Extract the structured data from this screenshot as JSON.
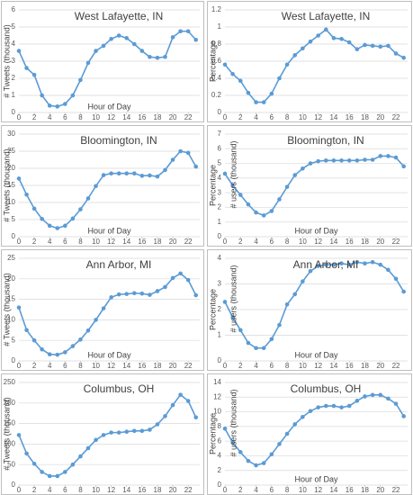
{
  "chart_data": [
    {
      "type": "line",
      "title": "West Lafayette, IN",
      "y_label": "# Tweets (thousand)",
      "x_label": "Hour of Day",
      "color": "#5b9bd5",
      "grid": true,
      "x": [
        0,
        1,
        2,
        3,
        4,
        5,
        6,
        7,
        8,
        9,
        10,
        11,
        12,
        13,
        14,
        15,
        16,
        17,
        18,
        19,
        20,
        21,
        22,
        23
      ],
      "values": [
        3.6,
        2.6,
        2.2,
        1.0,
        0.4,
        0.35,
        0.5,
        1.0,
        1.9,
        2.9,
        3.6,
        3.9,
        4.3,
        4.5,
        4.35,
        4.0,
        3.6,
        3.25,
        3.2,
        3.25,
        4.4,
        4.75,
        4.75,
        4.25
      ],
      "xlim": [
        0,
        23.5
      ],
      "xticks": [
        0,
        2,
        4,
        6,
        8,
        10,
        12,
        14,
        16,
        18,
        20,
        22
      ],
      "ylim": [
        0,
        6
      ],
      "yticks": [
        0,
        1,
        2,
        3,
        4,
        5,
        6
      ]
    },
    {
      "type": "line",
      "title": "West Lafayette, IN",
      "y_label": "Percentage",
      "color": "#5b9bd5",
      "grid": true,
      "x": [
        0,
        1,
        2,
        3,
        4,
        5,
        6,
        7,
        8,
        9,
        10,
        11,
        12,
        13,
        14,
        15,
        16,
        17,
        18,
        19,
        20,
        21,
        22,
        23
      ],
      "values": [
        0.56,
        0.45,
        0.37,
        0.23,
        0.12,
        0.12,
        0.22,
        0.4,
        0.56,
        0.67,
        0.75,
        0.83,
        0.9,
        0.97,
        0.87,
        0.86,
        0.82,
        0.74,
        0.79,
        0.78,
        0.77,
        0.78,
        0.69,
        0.64
      ],
      "xlim": [
        0,
        23.5
      ],
      "xticks": [
        0,
        2,
        4,
        6,
        8,
        10,
        12,
        14,
        16,
        18,
        20,
        22
      ],
      "ylim": [
        0,
        1.2
      ],
      "yticks": [
        0,
        0.2,
        0.4,
        0.6,
        0.8,
        1,
        1.2
      ]
    },
    {
      "type": "line",
      "title": "Bloomington, IN",
      "y_label": "# Tweets (thousand)",
      "x_label": "Hour of Day",
      "color": "#5b9bd5",
      "grid": true,
      "x": [
        0,
        1,
        2,
        3,
        4,
        5,
        6,
        7,
        8,
        9,
        10,
        11,
        12,
        13,
        14,
        15,
        16,
        17,
        18,
        19,
        20,
        21,
        22,
        23
      ],
      "values": [
        17,
        12.3,
        8.2,
        5.2,
        3.2,
        2.5,
        3.2,
        5.3,
        8,
        11.2,
        14.8,
        18,
        18.5,
        18.5,
        18.5,
        18.5,
        17.8,
        17.9,
        17.6,
        19.5,
        22.5,
        25,
        24.5,
        20.5
      ],
      "xlim": [
        0,
        23.5
      ],
      "xticks": [
        0,
        2,
        4,
        6,
        8,
        10,
        12,
        14,
        16,
        18,
        20,
        22
      ],
      "ylim": [
        0,
        30
      ],
      "yticks": [
        0,
        5,
        10,
        15,
        20,
        25,
        30
      ]
    },
    {
      "type": "line",
      "title": "Bloomington, IN",
      "y_label": "Percentage",
      "overlay_label": "# users (thousand)",
      "x_label": "Hour of Day",
      "color": "#5b9bd5",
      "grid": true,
      "x": [
        0,
        1,
        2,
        3,
        4,
        5,
        6,
        7,
        8,
        9,
        10,
        11,
        12,
        13,
        14,
        15,
        16,
        17,
        18,
        19,
        20,
        21,
        22,
        23
      ],
      "values": [
        4.3,
        3.5,
        2.85,
        2.2,
        1.65,
        1.45,
        1.75,
        2.55,
        3.4,
        4.2,
        4.65,
        5.0,
        5.15,
        5.2,
        5.2,
        5.2,
        5.2,
        5.2,
        5.25,
        5.25,
        5.5,
        5.5,
        5.4,
        4.8
      ],
      "xlim": [
        0,
        23.5
      ],
      "xticks": [
        0,
        2,
        4,
        6,
        8,
        10,
        12,
        14,
        16,
        18,
        20,
        22
      ],
      "ylim": [
        0,
        7
      ],
      "yticks": [
        0,
        1,
        2,
        3,
        4,
        5,
        6,
        7
      ]
    },
    {
      "type": "line",
      "title": "Ann Arbor, MI",
      "y_label": "# Tweets (thousand)",
      "x_label": "Hour of Day",
      "color": "#5b9bd5",
      "grid": true,
      "x": [
        0,
        1,
        2,
        3,
        4,
        5,
        6,
        7,
        8,
        9,
        10,
        11,
        12,
        13,
        14,
        15,
        16,
        17,
        18,
        19,
        20,
        21,
        22,
        23
      ],
      "values": [
        13,
        7.5,
        5,
        2.8,
        1.6,
        1.5,
        2.1,
        3.6,
        5.2,
        7.4,
        10,
        12.8,
        15.5,
        16.2,
        16.3,
        16.5,
        16.4,
        16.1,
        17,
        18,
        20.2,
        21.3,
        19.7,
        16
      ],
      "xlim": [
        0,
        23.5
      ],
      "xticks": [
        0,
        2,
        4,
        6,
        8,
        10,
        12,
        14,
        16,
        18,
        20,
        22
      ],
      "ylim": [
        0,
        25
      ],
      "yticks": [
        0,
        5,
        10,
        15,
        20,
        25
      ]
    },
    {
      "type": "line",
      "title": "Ann Arbor, MI",
      "y_label": "Percentage",
      "overlay_label": "# users (thousand)",
      "x_label": "Hour of Day",
      "color": "#5b9bd5",
      "grid": true,
      "x": [
        0,
        1,
        2,
        3,
        4,
        5,
        6,
        7,
        8,
        9,
        10,
        11,
        12,
        13,
        14,
        15,
        16,
        17,
        18,
        19,
        20,
        21,
        22,
        23
      ],
      "values": [
        2.3,
        1.7,
        1.2,
        0.7,
        0.5,
        0.5,
        0.85,
        1.4,
        2.2,
        2.6,
        3.1,
        3.5,
        3.7,
        3.75,
        3.75,
        3.8,
        3.75,
        3.85,
        3.8,
        3.85,
        3.75,
        3.55,
        3.2,
        2.7
      ],
      "xlim": [
        0,
        23.5
      ],
      "xticks": [
        0,
        2,
        4,
        6,
        8,
        10,
        12,
        14,
        16,
        18,
        20,
        22
      ],
      "ylim": [
        0,
        4
      ],
      "yticks": [
        0,
        1,
        2,
        3,
        4
      ]
    },
    {
      "type": "line",
      "title": "Columbus, OH",
      "y_label": "# Tweets (thousand)",
      "color": "#5b9bd5",
      "grid": true,
      "x": [
        0,
        1,
        2,
        3,
        4,
        5,
        6,
        7,
        8,
        9,
        10,
        11,
        12,
        13,
        14,
        15,
        16,
        17,
        18,
        19,
        20,
        21,
        22,
        23
      ],
      "values": [
        122,
        77,
        52,
        32,
        22,
        22,
        32,
        50,
        70,
        90,
        110,
        122,
        128,
        128,
        130,
        132,
        132,
        135,
        148,
        168,
        195,
        220,
        205,
        165
      ],
      "xlim": [
        0,
        23.5
      ],
      "xticks": [
        0,
        2,
        4,
        6,
        8,
        10,
        12,
        14,
        16,
        18,
        20,
        22
      ],
      "ylim": [
        0,
        250
      ],
      "yticks": [
        0,
        50,
        100,
        150,
        200,
        250
      ]
    },
    {
      "type": "line",
      "title": "Columbus, OH",
      "y_label": "Percentage",
      "overlay_label": "# users (thousand)",
      "x_label": "Hour of Day",
      "color": "#5b9bd5",
      "grid": true,
      "x": [
        0,
        1,
        2,
        3,
        4,
        5,
        6,
        7,
        8,
        9,
        10,
        11,
        12,
        13,
        14,
        15,
        16,
        17,
        18,
        19,
        20,
        21,
        22,
        23
      ],
      "values": [
        7.7,
        5.8,
        4.5,
        3.3,
        2.7,
        3.0,
        4.2,
        5.6,
        7.0,
        8.3,
        9.3,
        10.1,
        10.6,
        10.8,
        10.8,
        10.6,
        10.8,
        11.5,
        12.1,
        12.3,
        12.3,
        11.8,
        11.1,
        9.4
      ],
      "xlim": [
        0,
        23.5
      ],
      "xticks": [
        0,
        2,
        4,
        6,
        8,
        10,
        12,
        14,
        16,
        18,
        20,
        22
      ],
      "ylim": [
        0,
        14
      ],
      "yticks": [
        0,
        2,
        4,
        6,
        8,
        10,
        12,
        14
      ]
    }
  ]
}
